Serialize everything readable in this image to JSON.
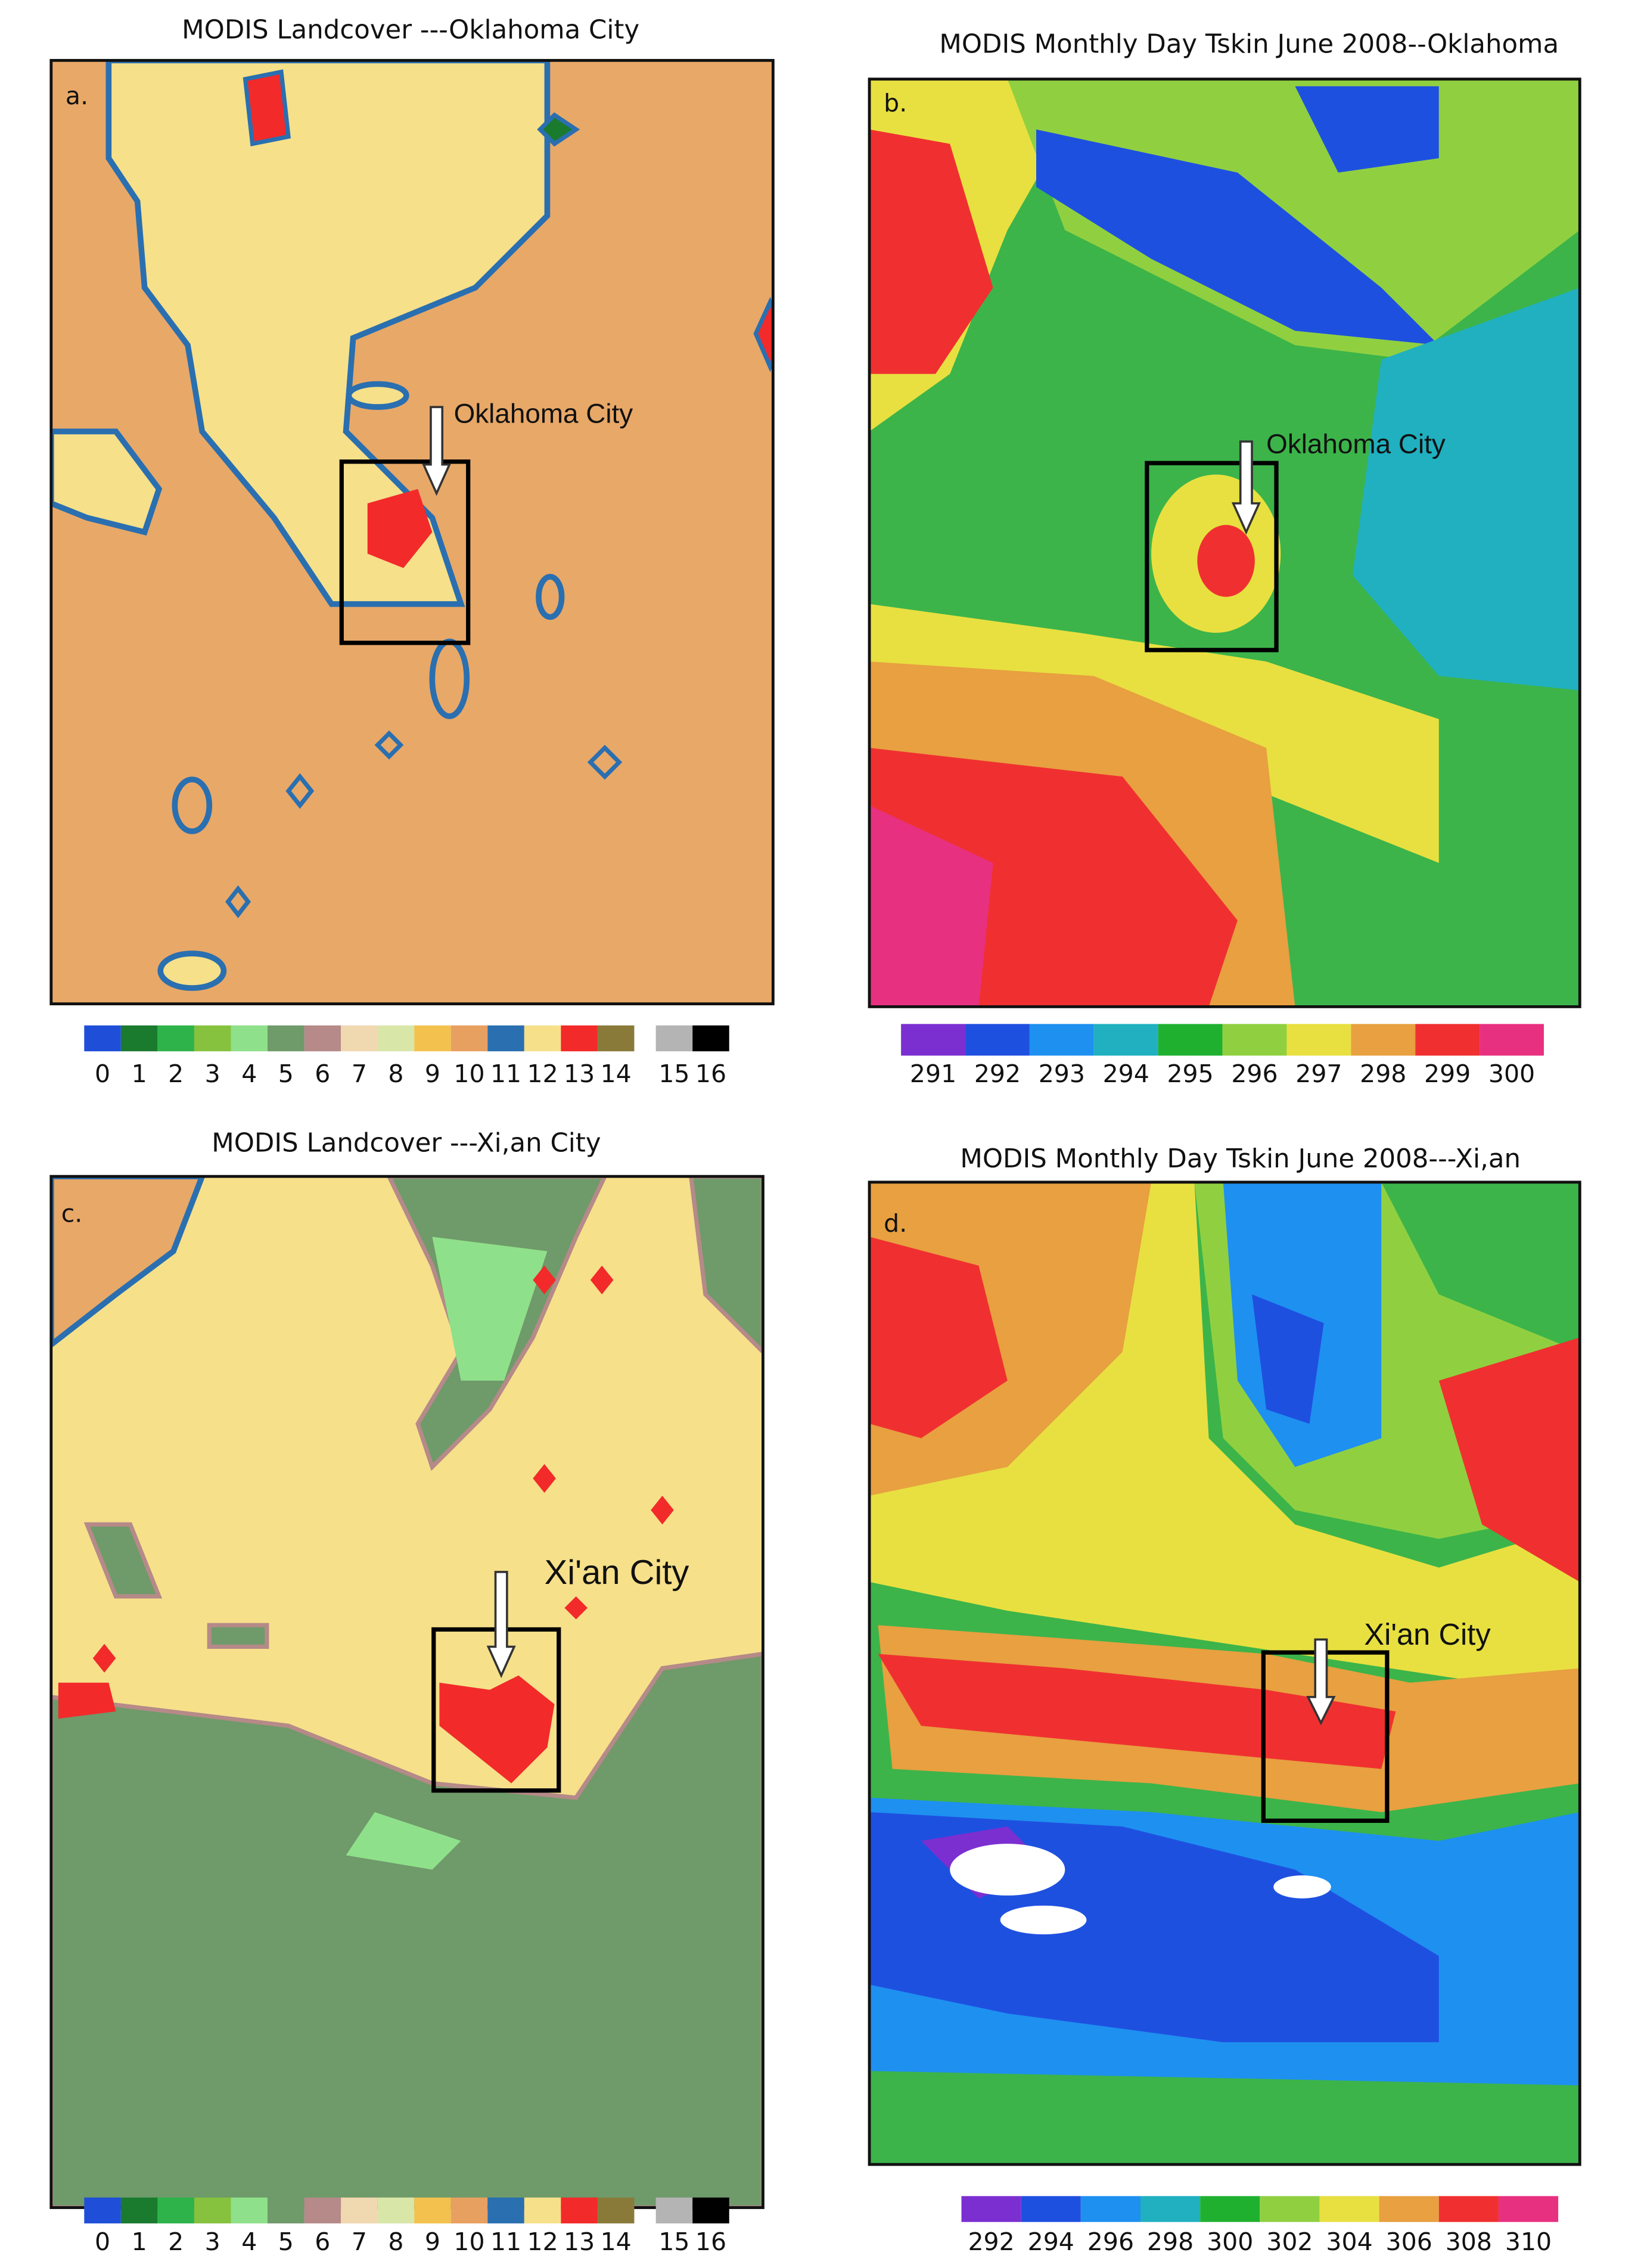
{
  "panels": [
    {
      "title": "MODIS Landcover ---Oklahoma City",
      "label": "a.",
      "annotation": "Oklahoma City",
      "colorbar": {
        "colors": [
          "#1f4fd8",
          "#1a7a2e",
          "#2db34a",
          "#86c23e",
          "#8fe08a",
          "#6f9a6a",
          "#b58a88",
          "#f0d8b0",
          "#d8e6a8",
          "#f2c14e",
          "#e8a060",
          "#2a6fb0",
          "#f6e08a",
          "#f22a2a",
          "#8a7a3a",
          "#b4b4b4",
          "#000000"
        ],
        "labels": [
          0,
          1,
          2,
          3,
          4,
          5,
          6,
          7,
          8,
          9,
          10,
          11,
          12,
          13,
          14,
          15,
          16
        ]
      }
    },
    {
      "title": "MODIS Monthly Day Tskin June 2008--Oklahoma",
      "label": "b.",
      "annotation": "Oklahoma City",
      "colorbar": {
        "colors": [
          "#7b2fd0",
          "#1e50e0",
          "#1e90f0",
          "#20b0c0",
          "#20b030",
          "#90d040",
          "#e8e040",
          "#e8a040",
          "#f03030",
          "#e83080"
        ],
        "labels": [
          291,
          292,
          293,
          294,
          295,
          296,
          297,
          298,
          299,
          300
        ]
      }
    },
    {
      "title": "MODIS Landcover ---Xi,an City",
      "label": "c.",
      "annotation": "Xi'an City",
      "colorbar": {
        "colors": [
          "#1f4fd8",
          "#1a7a2e",
          "#2db34a",
          "#86c23e",
          "#8fe08a",
          "#6f9a6a",
          "#b58a88",
          "#f0d8b0",
          "#d8e6a8",
          "#f2c14e",
          "#e8a060",
          "#2a6fb0",
          "#f6e08a",
          "#f22a2a",
          "#8a7a3a",
          "#b4b4b4",
          "#000000"
        ],
        "labels": [
          0,
          1,
          2,
          3,
          4,
          5,
          6,
          7,
          8,
          9,
          10,
          11,
          12,
          13,
          14,
          15,
          16
        ]
      }
    },
    {
      "title": "MODIS Monthly Day Tskin June 2008---Xi,an",
      "label": "d.",
      "annotation": "Xi'an City",
      "colorbar": {
        "colors": [
          "#7b2fd0",
          "#1e50e0",
          "#1e90f0",
          "#20b0c0",
          "#20b030",
          "#90d040",
          "#e8e040",
          "#e8a040",
          "#f03030",
          "#e83080"
        ],
        "labels": [
          292,
          294,
          296,
          298,
          300,
          302,
          304,
          306,
          308,
          310
        ]
      }
    }
  ]
}
